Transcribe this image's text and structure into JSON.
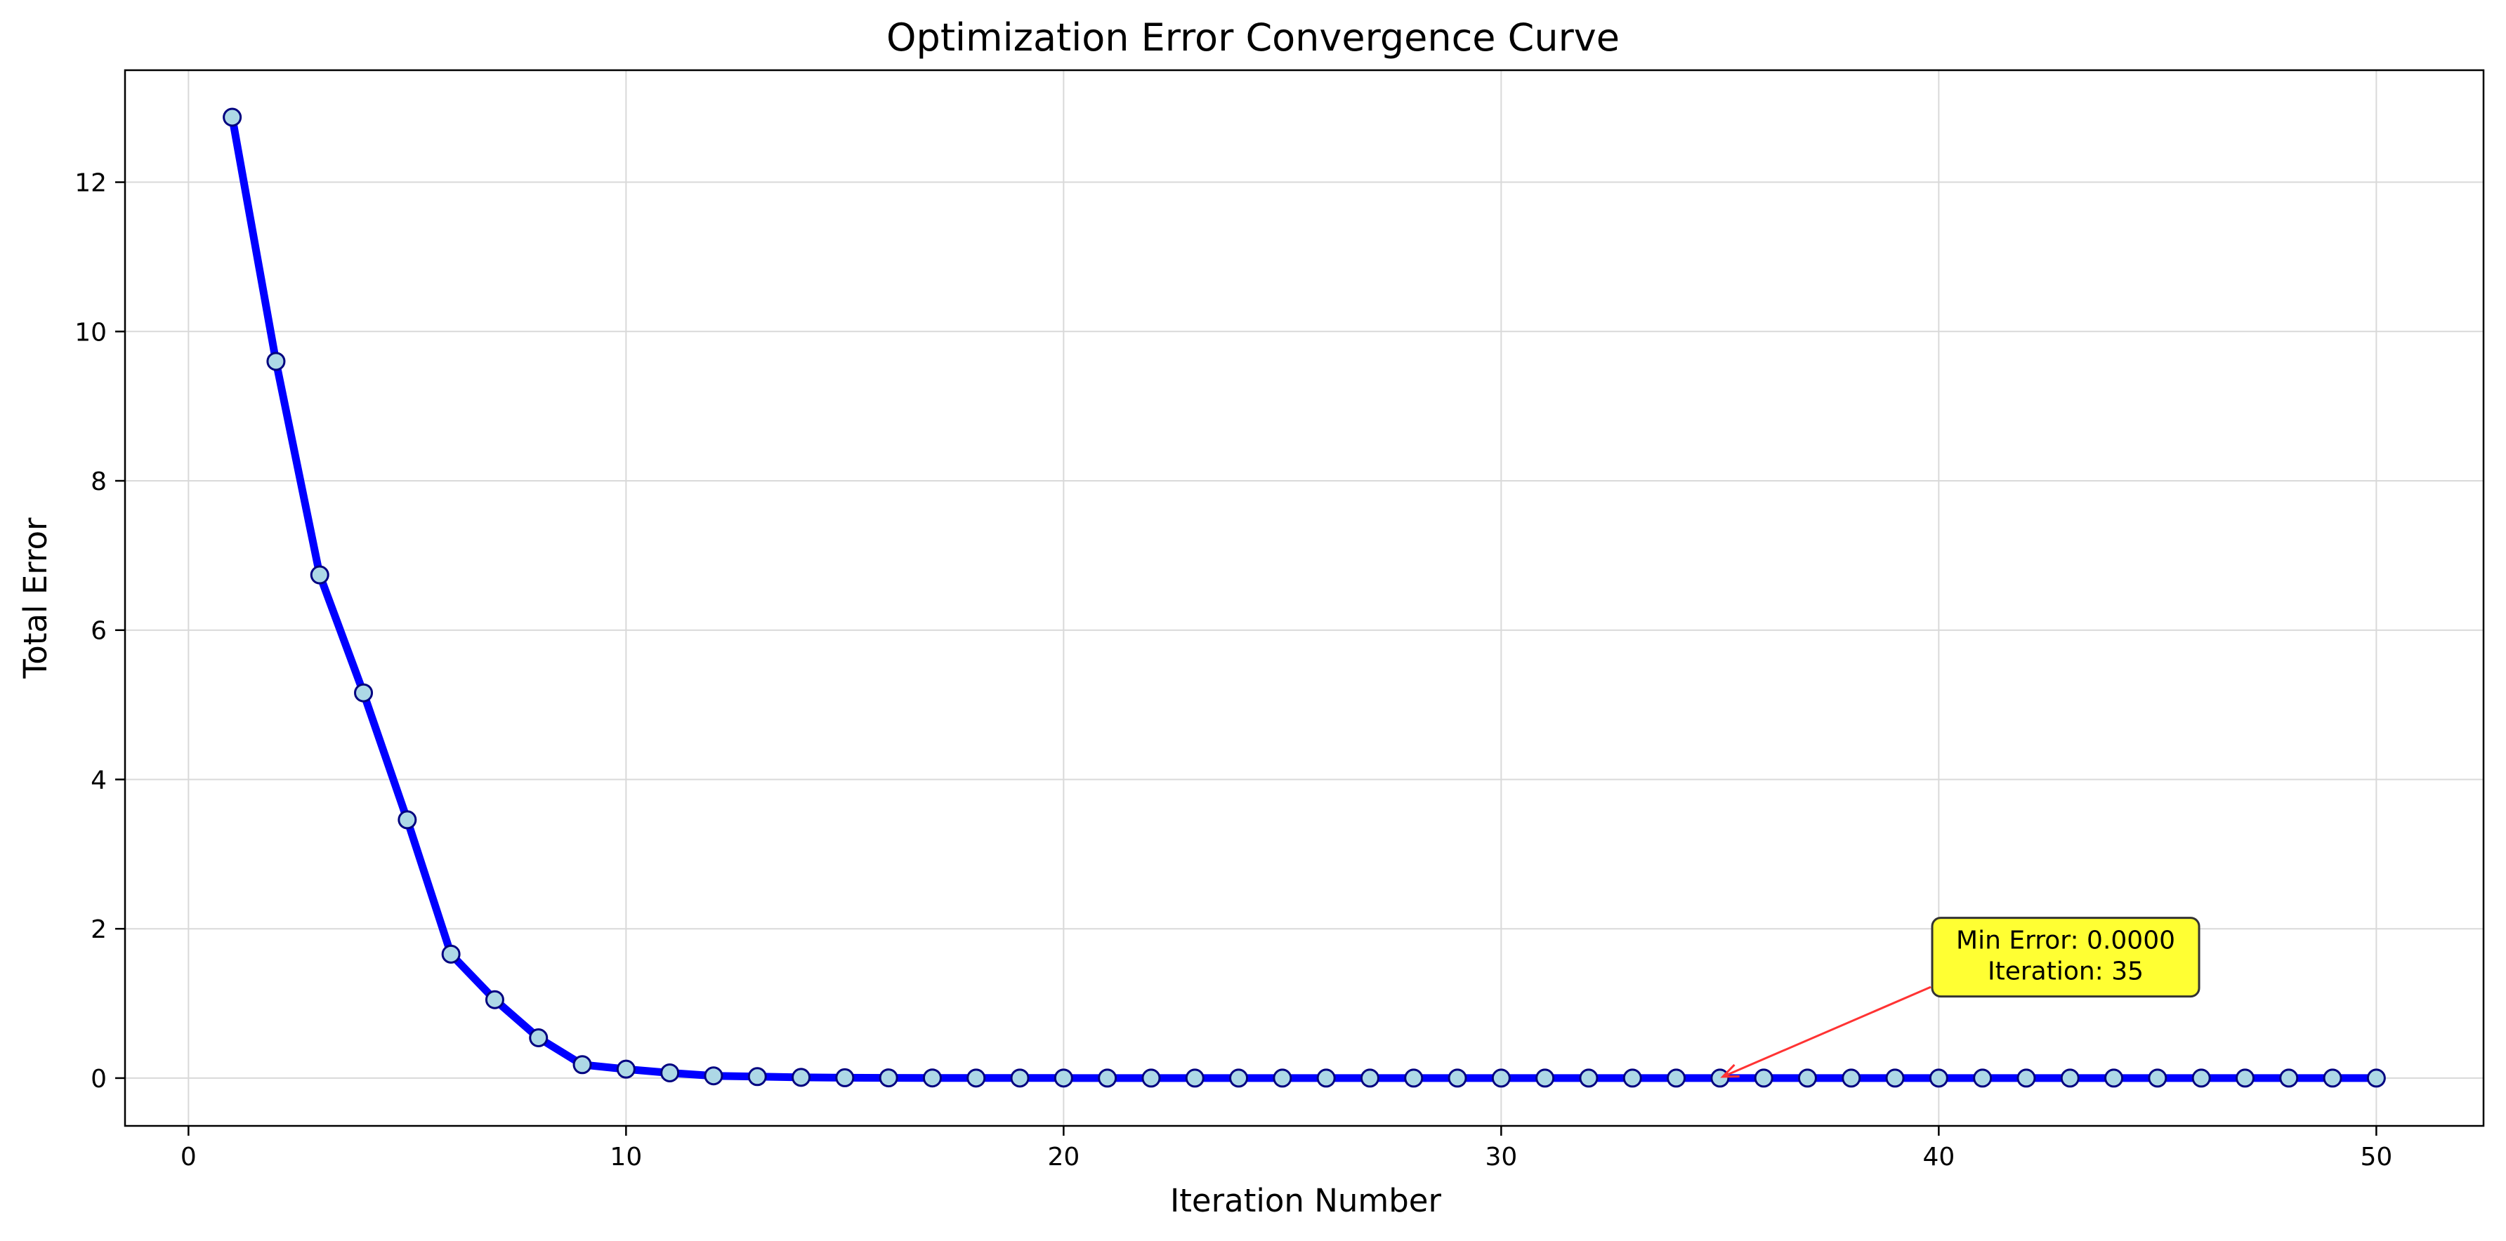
{
  "chart_data": {
    "type": "line",
    "title": "Optimization Error Convergence Curve",
    "xlabel": "Iteration Number",
    "ylabel": "Total Error",
    "xlim": [
      -1.45,
      52.45
    ],
    "ylim": [
      -0.64,
      13.5
    ],
    "xticks": [
      0,
      10,
      20,
      30,
      40,
      50
    ],
    "yticks": [
      0,
      2,
      4,
      6,
      8,
      10,
      12
    ],
    "grid": true,
    "series": [
      {
        "x": [
          1,
          2,
          3,
          4,
          5,
          6,
          7,
          8,
          9,
          10,
          11,
          12,
          13,
          14,
          15,
          16,
          17,
          18,
          19,
          20,
          21,
          22,
          23,
          24,
          25,
          26,
          27,
          28,
          29,
          30,
          31,
          32,
          33,
          34,
          35,
          36,
          37,
          38,
          39,
          40,
          41,
          42,
          43,
          44,
          45,
          46,
          47,
          48,
          49,
          50
        ],
        "y": [
          12.87,
          9.6,
          6.74,
          5.16,
          3.46,
          1.66,
          1.05,
          0.54,
          0.18,
          0.12,
          0.07,
          0.03,
          0.02,
          0.01,
          0.005,
          0.003,
          0.002,
          0.001,
          0.001,
          0.001,
          0,
          0,
          0,
          0,
          0,
          0,
          0,
          0,
          0,
          0,
          0,
          0,
          0,
          0,
          0,
          0,
          0,
          0,
          0,
          0,
          0,
          0,
          0,
          0,
          0,
          0,
          0,
          0,
          0,
          0
        ],
        "line_color": "#0000ff",
        "marker_fill": "#add8e6",
        "marker_edge": "#000080"
      }
    ],
    "annotations": [
      {
        "lines": [
          "Min Error: 0.0000",
          "Iteration: 35"
        ],
        "point": [
          35,
          0
        ],
        "text_at": [
          42.9,
          1.62
        ],
        "box_color": "#ffff33",
        "arrow_color": "#ff3333"
      }
    ]
  }
}
